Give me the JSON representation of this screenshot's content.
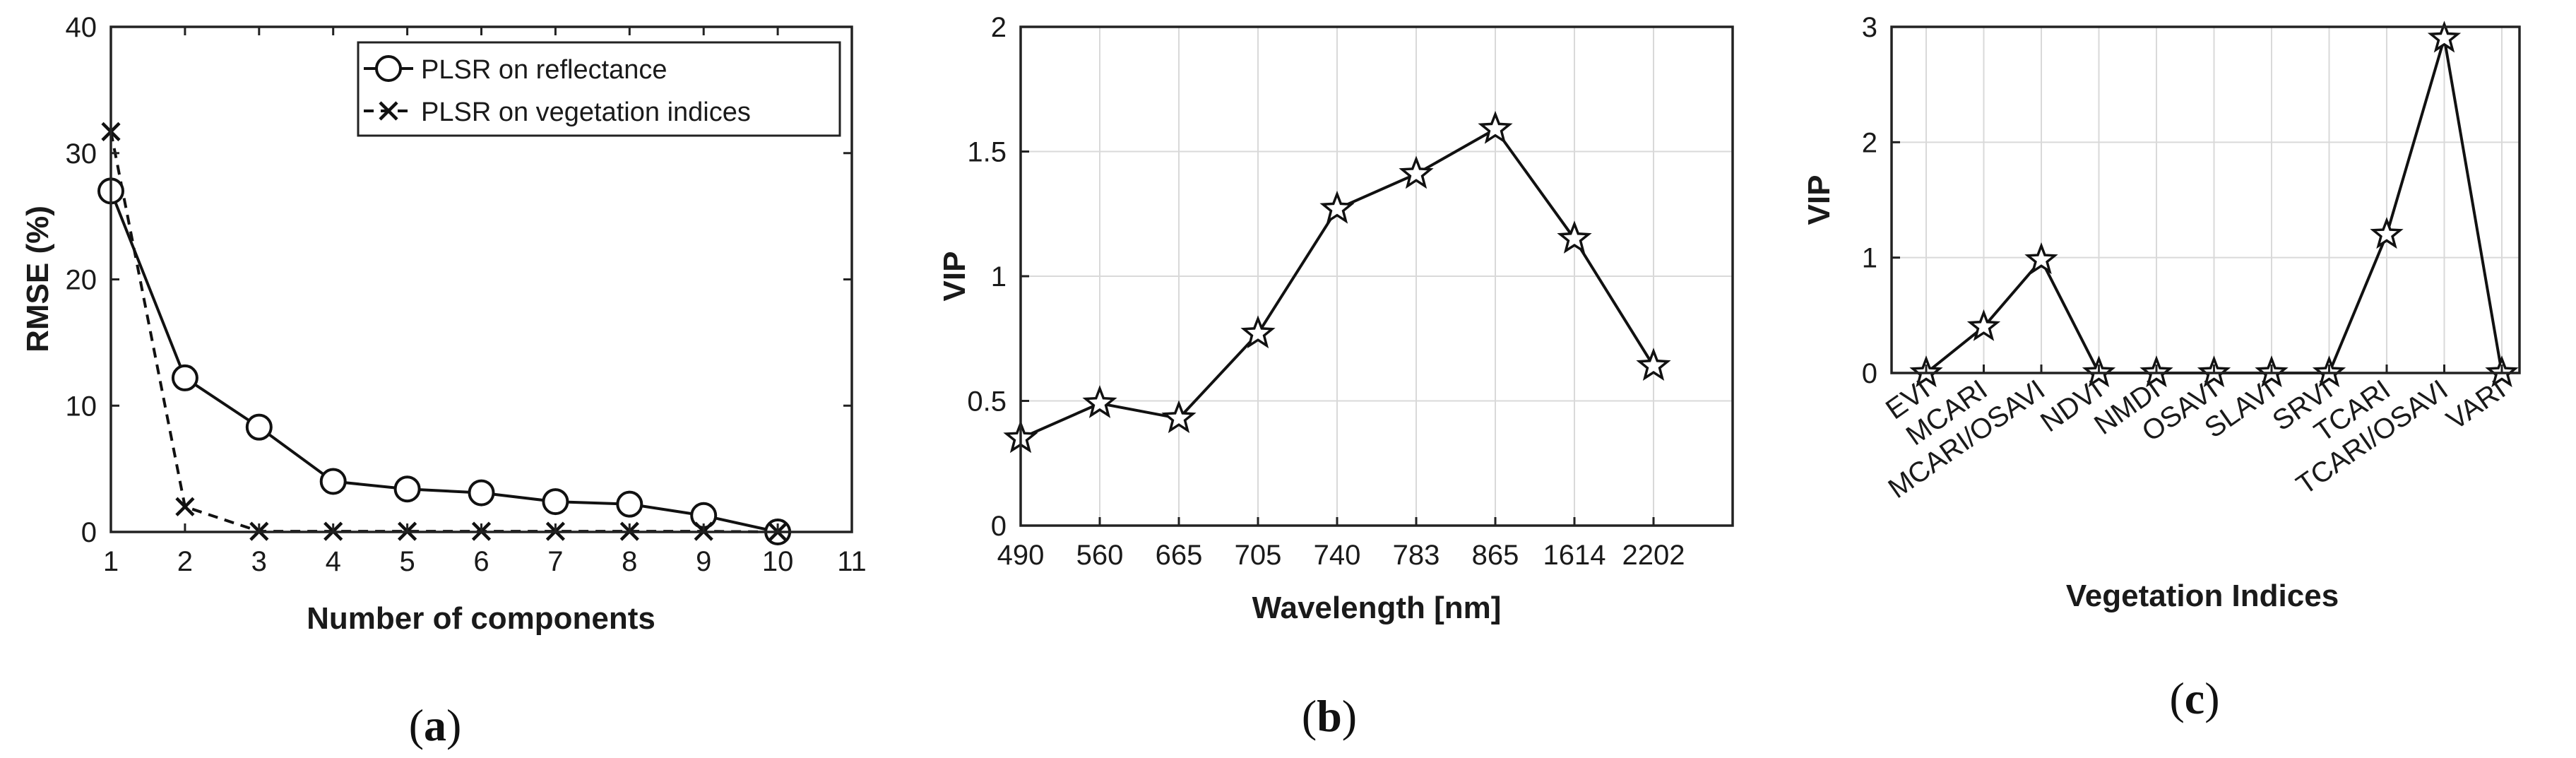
{
  "chart_data": [
    {
      "type": "line",
      "panel": "a",
      "panel_label": "(a)",
      "xlabel": "Number of components",
      "ylabel": "RMSE (%)",
      "xlim": [
        1,
        11
      ],
      "ylim": [
        0,
        40
      ],
      "xticks": [
        1,
        2,
        3,
        4,
        5,
        6,
        7,
        8,
        9,
        10,
        11
      ],
      "yticks": [
        0,
        10,
        20,
        30,
        40
      ],
      "grid": false,
      "legend_position": "top-right",
      "series": [
        {
          "name": "PLSR on reflectance",
          "style": "solid",
          "marker": "circle",
          "x": [
            1,
            2,
            3,
            4,
            5,
            6,
            7,
            8,
            9,
            10
          ],
          "values": [
            27,
            12.2,
            8.3,
            4.0,
            3.4,
            3.1,
            2.4,
            2.2,
            1.3,
            0
          ]
        },
        {
          "name": "PLSR on vegetation  indices",
          "style": "dashed",
          "marker": "x",
          "x": [
            1,
            2,
            3,
            4,
            5,
            6,
            7,
            8,
            9,
            10
          ],
          "values": [
            31.7,
            2.0,
            0.05,
            0.05,
            0.05,
            0.05,
            0.05,
            0.05,
            0.05,
            0
          ]
        }
      ]
    },
    {
      "type": "line",
      "panel": "b",
      "panel_label": "(b)",
      "xlabel": "Wavelength [nm]",
      "ylabel": "VIP",
      "categories": [
        "490",
        "560",
        "665",
        "705",
        "740",
        "783",
        "865",
        "1614",
        "2202"
      ],
      "values": [
        0.35,
        0.49,
        0.43,
        0.77,
        1.27,
        1.41,
        1.59,
        1.15,
        0.64
      ],
      "ylim": [
        0,
        2
      ],
      "yticks": [
        0,
        0.5,
        1,
        1.5,
        2
      ],
      "ytick_labels": [
        "0",
        "0.5",
        "1",
        "1.5",
        "2"
      ],
      "grid": true,
      "marker": "star"
    },
    {
      "type": "line",
      "panel": "c",
      "panel_label": "(c)",
      "xlabel": "Vegetation Indices",
      "ylabel": "VIP",
      "categories": [
        "EVI",
        "MCARI",
        "MCARI/OSAVI",
        "NDVI",
        "NMDI",
        "OSAVI",
        "SLAVI",
        "SRVI",
        "TCARI",
        "TCARI/OSAVI",
        "VARI"
      ],
      "values": [
        0,
        0.4,
        0.98,
        0,
        0,
        0,
        0,
        0,
        1.2,
        2.9,
        0
      ],
      "ylim": [
        0,
        3
      ],
      "yticks": [
        0,
        1,
        2,
        3
      ],
      "grid": true,
      "marker": "star"
    }
  ]
}
